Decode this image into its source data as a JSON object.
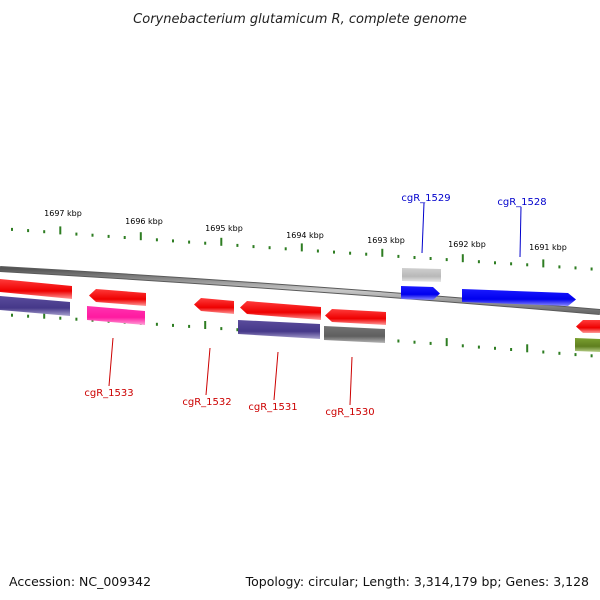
{
  "title": "Corynebacterium glutamicum R, complete genome",
  "footer": {
    "accession": "Accession: NC_009342",
    "summary": "Topology: circular; Length: 3,314,179 bp; Genes: 3,128"
  },
  "ruler_labels": [
    "1697 kbp",
    "1696 kbp",
    "1695 kbp",
    "1694 kbp",
    "1693 kbp",
    "1692 kbp",
    "1691 kbp"
  ],
  "gene_labels": [
    {
      "text": "cgR_1529",
      "color": "#0000cc"
    },
    {
      "text": "cgR_1528",
      "color": "#0000cc"
    },
    {
      "text": "cgR_1533",
      "color": "#cc0000"
    },
    {
      "text": "cgR_1532",
      "color": "#cc0000"
    },
    {
      "text": "cgR_1531",
      "color": "#cc0000"
    },
    {
      "text": "cgR_1530",
      "color": "#cc0000"
    }
  ],
  "colors": {
    "backbone": "#8a8a8a",
    "tick": "#2e7d22",
    "forward_gene": "#0000ee",
    "reverse_gene": "#ee0000",
    "pink_gene": "#ff22aa",
    "purple_gene": "#4d3f8f",
    "gray_gene": "#666666",
    "light_gray_gene": "#bbbbbb",
    "olive_gene": "#6b8e23"
  }
}
